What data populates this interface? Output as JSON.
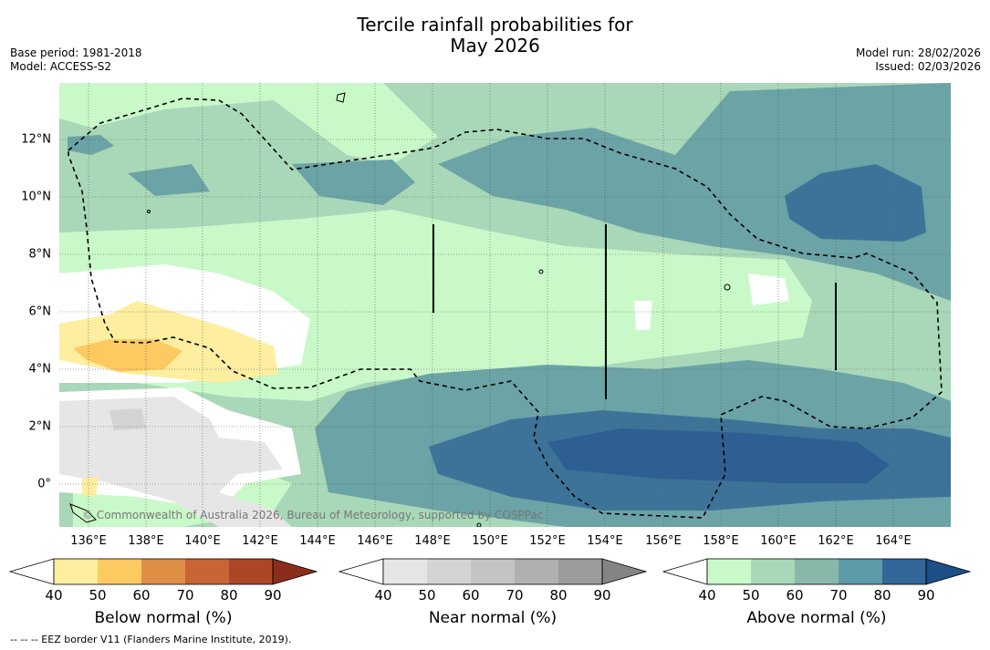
{
  "title_line1": "Tercile rainfall probabilities for",
  "title_line2": "May 2026",
  "base_period": "Base period: 1981-2018",
  "model": "Model: ACCESS-S2",
  "model_run": "Model run: 28/02/2026",
  "issued": "Issued: 02/03/2026",
  "credit": "© Commonwealth of Australia 2026, Bureau of Meteorology, supported by COSPPac",
  "footnote": "--  --  -- EEZ border V11 (Flanders Marine Institute, 2019).",
  "lon_ticks": [
    "136°E",
    "138°E",
    "140°E",
    "142°E",
    "144°E",
    "146°E",
    "148°E",
    "150°E",
    "152°E",
    "154°E",
    "156°E",
    "158°E",
    "160°E",
    "162°E",
    "164°E"
  ],
  "lat_ticks": [
    "12°N",
    "10°N",
    "8°N",
    "6°N",
    "4°N",
    "2°N",
    "0°"
  ],
  "colorbars": [
    {
      "label": "Below normal (%)",
      "ticks": [
        "40",
        "50",
        "60",
        "70",
        "80",
        "90"
      ],
      "colors": [
        "#ffffff",
        "#feeea0",
        "#fdca62",
        "#de8f45",
        "#c96434",
        "#ab4726",
        "#8c2d1b"
      ]
    },
    {
      "label": "Near normal (%)",
      "ticks": [
        "40",
        "50",
        "60",
        "70",
        "80",
        "90"
      ],
      "colors": [
        "#ffffff",
        "#e6e6e6",
        "#d4d4d4",
        "#c4c4c4",
        "#b0b0b0",
        "#9c9c9c",
        "#848484"
      ]
    },
    {
      "label": "Above normal (%)",
      "ticks": [
        "40",
        "50",
        "60",
        "70",
        "80",
        "90"
      ],
      "colors": [
        "#ffffff",
        "#c9f9c9",
        "#a8d8b8",
        "#87b8aa",
        "#5d9aaa",
        "#336699",
        "#1c4e88"
      ]
    }
  ]
}
